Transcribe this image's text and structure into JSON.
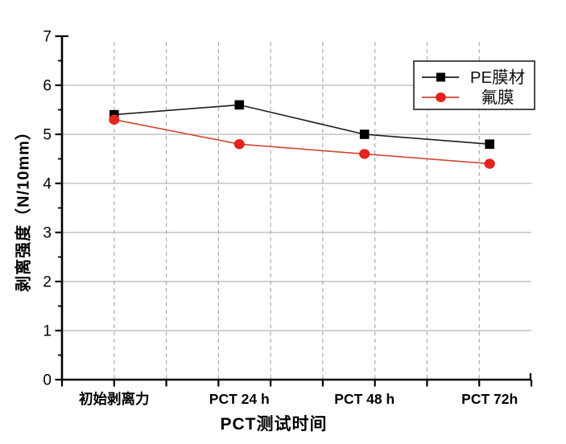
{
  "chart_data": {
    "type": "line",
    "title": "",
    "xlabel": "PCT测试时间",
    "ylabel": "剥离强度（N/10mm）",
    "categories": [
      "初始剥离力",
      "PCT 24 h",
      "PCT 48 h",
      "PCT 72h"
    ],
    "x_hours": [
      0,
      24,
      48,
      72
    ],
    "x_axis_range": [
      -10,
      80
    ],
    "x_tick_step": 10,
    "x_grid_hours": [
      0,
      10,
      20,
      30,
      40,
      50,
      60,
      70
    ],
    "ylim": [
      0,
      7
    ],
    "y_major_step": 1,
    "y_minor_step": 0.5,
    "y_tick_labels": [
      "0",
      "1",
      "2",
      "3",
      "4",
      "5",
      "6",
      "7"
    ],
    "grid": {
      "horizontal": "solid",
      "vertical": "dashed"
    },
    "legend_position": "top-right",
    "series": [
      {
        "name": "PE膜材",
        "marker": "square",
        "marker_color": "#000000",
        "line_color": "#1d1d1d",
        "values": [
          5.4,
          5.6,
          5.0,
          4.8
        ]
      },
      {
        "name": "氟膜",
        "marker": "circle",
        "marker_color": "#e4241c",
        "line_color": "#d14733",
        "values": [
          5.3,
          4.8,
          4.6,
          4.4
        ]
      }
    ]
  },
  "style_colors": {
    "axis": "#000000",
    "grid_solid": "#b6b6b6",
    "grid_dashed": "#ababab",
    "legend_border": "#4c4c4c",
    "legend_fill": "#ffffff",
    "tick_label": "#000000"
  }
}
